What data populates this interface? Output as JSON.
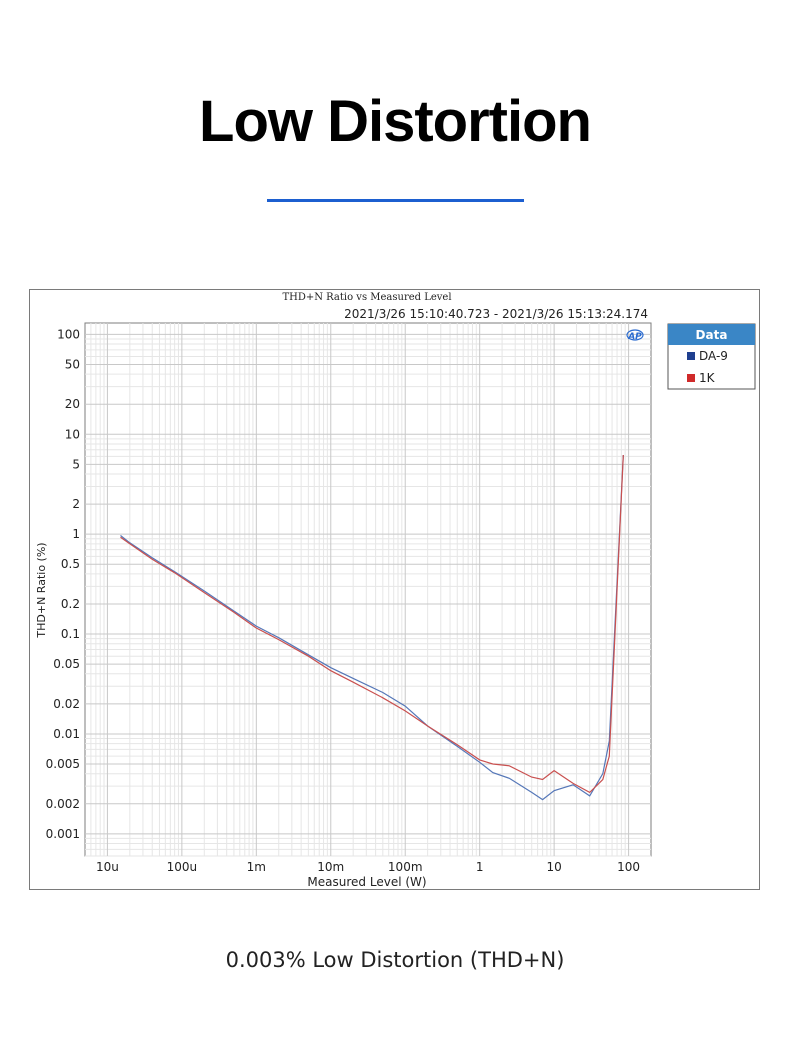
{
  "page": {
    "title": "Low Distortion",
    "caption": "0.003% Low Distortion (THD+N)"
  },
  "legend": {
    "header": "Data",
    "items": [
      {
        "label": "DA-9",
        "color": "#1f3f8f"
      },
      {
        "label": "1K",
        "color": "#d02a2a"
      }
    ]
  },
  "chart_data": {
    "type": "line",
    "title": "THD+N Ratio vs Measured Level",
    "subtitle": "2021/3/26 15:10:40.723 - 2021/3/26 15:13:24.174",
    "xlabel": "Measured Level (W)",
    "ylabel": "THD+N Ratio (%)",
    "xscale": "log",
    "yscale": "log",
    "xlim": [
      5e-06,
      200
    ],
    "ylim": [
      0.0006,
      130
    ],
    "grid": true,
    "legend_position": "outside-top-right",
    "x_ticks": [
      {
        "value": 1e-05,
        "label": "10u"
      },
      {
        "value": 0.0001,
        "label": "100u"
      },
      {
        "value": 0.001,
        "label": "1m"
      },
      {
        "value": 0.01,
        "label": "10m"
      },
      {
        "value": 0.1,
        "label": "100m"
      },
      {
        "value": 1,
        "label": "1"
      },
      {
        "value": 10,
        "label": "10"
      },
      {
        "value": 100,
        "label": "100"
      }
    ],
    "y_ticks": [
      {
        "value": 100,
        "label": "100"
      },
      {
        "value": 50,
        "label": "50"
      },
      {
        "value": 20,
        "label": "20"
      },
      {
        "value": 10,
        "label": "10"
      },
      {
        "value": 5,
        "label": "5"
      },
      {
        "value": 2,
        "label": "2"
      },
      {
        "value": 1,
        "label": "1"
      },
      {
        "value": 0.5,
        "label": "0.5"
      },
      {
        "value": 0.2,
        "label": "0.2"
      },
      {
        "value": 0.1,
        "label": "0.1"
      },
      {
        "value": 0.05,
        "label": "0.05"
      },
      {
        "value": 0.02,
        "label": "0.02"
      },
      {
        "value": 0.01,
        "label": "0.01"
      },
      {
        "value": 0.005,
        "label": "0.005"
      },
      {
        "value": 0.002,
        "label": "0.002"
      },
      {
        "value": 0.001,
        "label": "0.001"
      }
    ],
    "series": [
      {
        "name": "DA-9",
        "color": "#5577b8",
        "points": [
          [
            1.5e-05,
            0.97
          ],
          [
            2e-05,
            0.82
          ],
          [
            4e-05,
            0.58
          ],
          [
            8e-05,
            0.42
          ],
          [
            0.0002,
            0.27
          ],
          [
            0.0005,
            0.17
          ],
          [
            0.001,
            0.12
          ],
          [
            0.002,
            0.092
          ],
          [
            0.005,
            0.062
          ],
          [
            0.01,
            0.046
          ],
          [
            0.02,
            0.036
          ],
          [
            0.05,
            0.026
          ],
          [
            0.1,
            0.019
          ],
          [
            0.2,
            0.012
          ],
          [
            0.5,
            0.0075
          ],
          [
            1,
            0.0052
          ],
          [
            1.5,
            0.0041
          ],
          [
            2.5,
            0.0036
          ],
          [
            5,
            0.0026
          ],
          [
            7,
            0.0022
          ],
          [
            10,
            0.0027
          ],
          [
            18,
            0.0031
          ],
          [
            30,
            0.0024
          ],
          [
            45,
            0.004
          ],
          [
            55,
            0.0085
          ],
          [
            85,
            6.2
          ]
        ]
      },
      {
        "name": "1K",
        "color": "#c9504f",
        "points": [
          [
            1.5e-05,
            0.93
          ],
          [
            2e-05,
            0.8
          ],
          [
            4e-05,
            0.56
          ],
          [
            8e-05,
            0.41
          ],
          [
            0.0002,
            0.26
          ],
          [
            0.0005,
            0.165
          ],
          [
            0.001,
            0.115
          ],
          [
            0.002,
            0.088
          ],
          [
            0.005,
            0.06
          ],
          [
            0.01,
            0.043
          ],
          [
            0.02,
            0.033
          ],
          [
            0.05,
            0.023
          ],
          [
            0.1,
            0.017
          ],
          [
            0.2,
            0.012
          ],
          [
            0.5,
            0.0078
          ],
          [
            1,
            0.0055
          ],
          [
            1.5,
            0.005
          ],
          [
            2.5,
            0.0048
          ],
          [
            5,
            0.0037
          ],
          [
            7,
            0.0035
          ],
          [
            10,
            0.0043
          ],
          [
            18,
            0.0032
          ],
          [
            30,
            0.0026
          ],
          [
            45,
            0.0035
          ],
          [
            55,
            0.006
          ],
          [
            85,
            6.2
          ]
        ]
      }
    ]
  }
}
